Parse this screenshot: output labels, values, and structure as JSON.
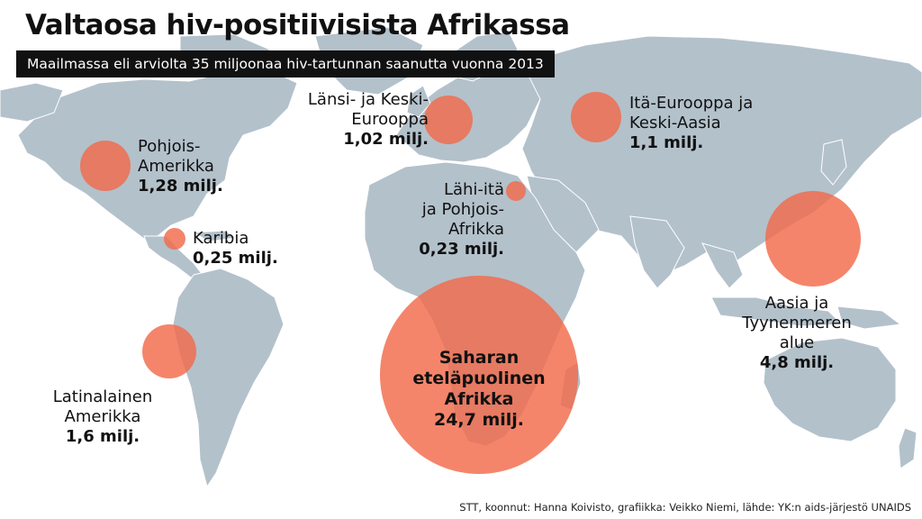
{
  "title": "Valtaosa hiv-positiivisista Afrikassa",
  "subtitle": "Maailmassa eli arviolta 35 miljoonaa hiv-tartunnan saanutta vuonna 2013",
  "colors": {
    "bubble": "#f26a4b",
    "land": "#b3c1cb",
    "ocean": "#ffffff",
    "text": "#111111"
  },
  "regions": {
    "north_america": {
      "name1": "Pohjois-",
      "name2": "Amerikka",
      "value": "1,28 milj."
    },
    "caribbean": {
      "name1": "Karibia",
      "value": "0,25 milj."
    },
    "latin_america": {
      "name1": "Latinalainen",
      "name2": "Amerikka",
      "value": "1,6 milj."
    },
    "west_central_europe": {
      "name1": "Länsi- ja Keski-",
      "name2": "Eurooppa",
      "value": "1,02 milj."
    },
    "mena": {
      "name1": "Lähi-itä",
      "name2": "ja Pohjois-",
      "name3": "Afrikka",
      "value": "0,23 milj."
    },
    "eastern_europe_central_asia": {
      "name1": "Itä-Eurooppa ja",
      "name2": "Keski-Aasia",
      "value": "1,1 milj."
    },
    "asia_pacific": {
      "name1": "Aasia ja",
      "name2": "Tyynenmeren",
      "name3": "alue",
      "value": "4,8 milj."
    },
    "sub_saharan_africa": {
      "name1": "Saharan",
      "name2": "eteläpuolinen",
      "name3": "Afrikka",
      "value": "24,7 milj."
    }
  },
  "source": "STT, koonnut: Hanna Koivisto, grafiikka: Veikko Niemi, lähde: YK:n aids-järjestö UNAIDS"
}
